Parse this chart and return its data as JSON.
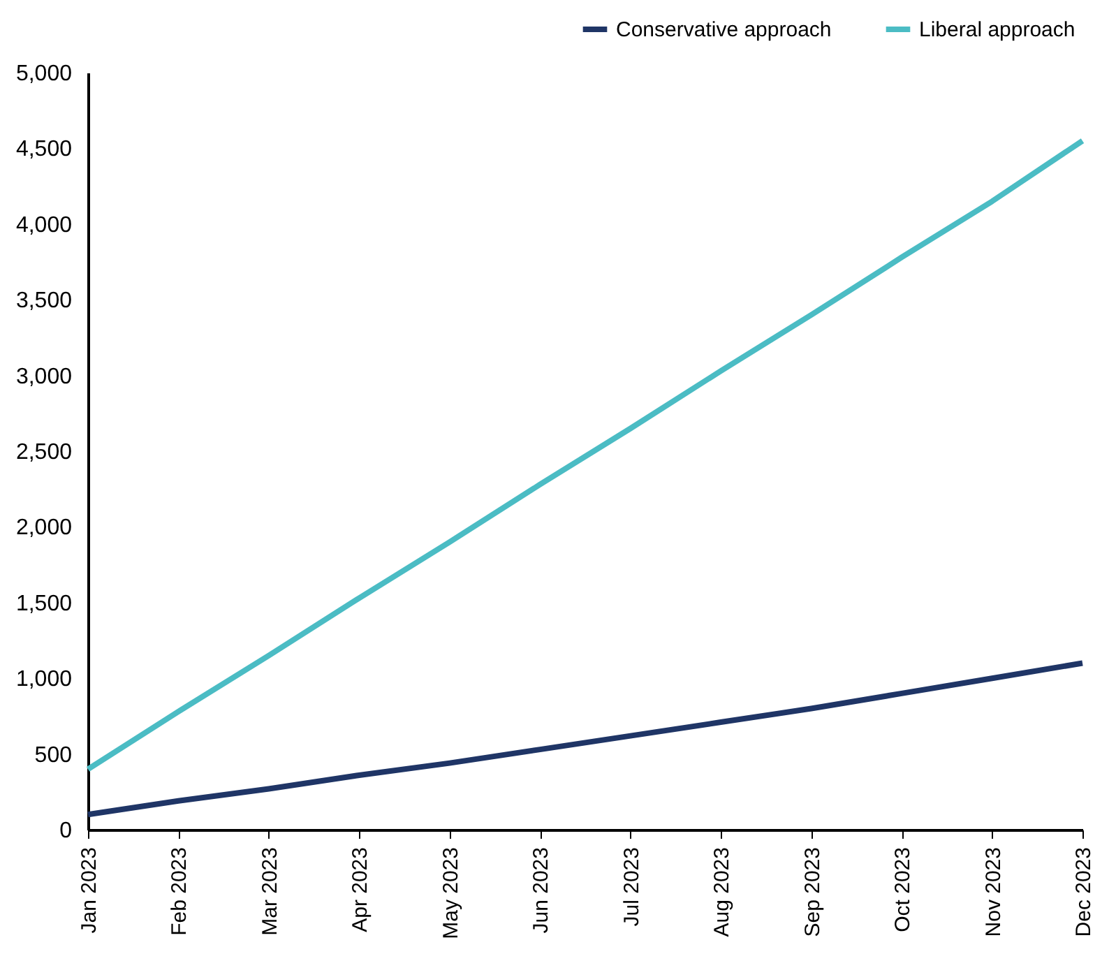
{
  "chart_data": {
    "type": "line",
    "categories": [
      "Jan 2023",
      "Feb 2023",
      "Mar 2023",
      "Apr 2023",
      "May 2023",
      "Jun 2023",
      "Jul 2023",
      "Aug 2023",
      "Sep 2023",
      "Oct 2023",
      "Nov 2023",
      "Dec 2023"
    ],
    "series": [
      {
        "name": "Conservative approach",
        "color": "#1f3566",
        "values": [
          100,
          190,
          270,
          360,
          440,
          530,
          620,
          710,
          800,
          900,
          1000,
          1100
        ]
      },
      {
        "name": "Liberal approach",
        "color": "#4bbcc4",
        "values": [
          400,
          780,
          1150,
          1530,
          1900,
          2280,
          2650,
          3030,
          3400,
          3780,
          4150,
          4550
        ]
      }
    ],
    "ylim": [
      0,
      5000
    ],
    "yticks": [
      0,
      500,
      {
        "value": 1000,
        "label": "1,000"
      },
      {
        "value": 1500,
        "label": "1,500"
      },
      {
        "value": 2000,
        "label": "2,000"
      },
      {
        "value": 2500,
        "label": "2,500"
      },
      {
        "value": 3000,
        "label": "3,000"
      },
      {
        "value": 3500,
        "label": "3,500"
      },
      {
        "value": 4000,
        "label": "4,000"
      },
      {
        "value": 4500,
        "label": "4,500"
      },
      {
        "value": 5000,
        "label": "5,000"
      }
    ],
    "grid": false,
    "legend": "top right",
    "marker": "none",
    "line_style": "solid"
  }
}
